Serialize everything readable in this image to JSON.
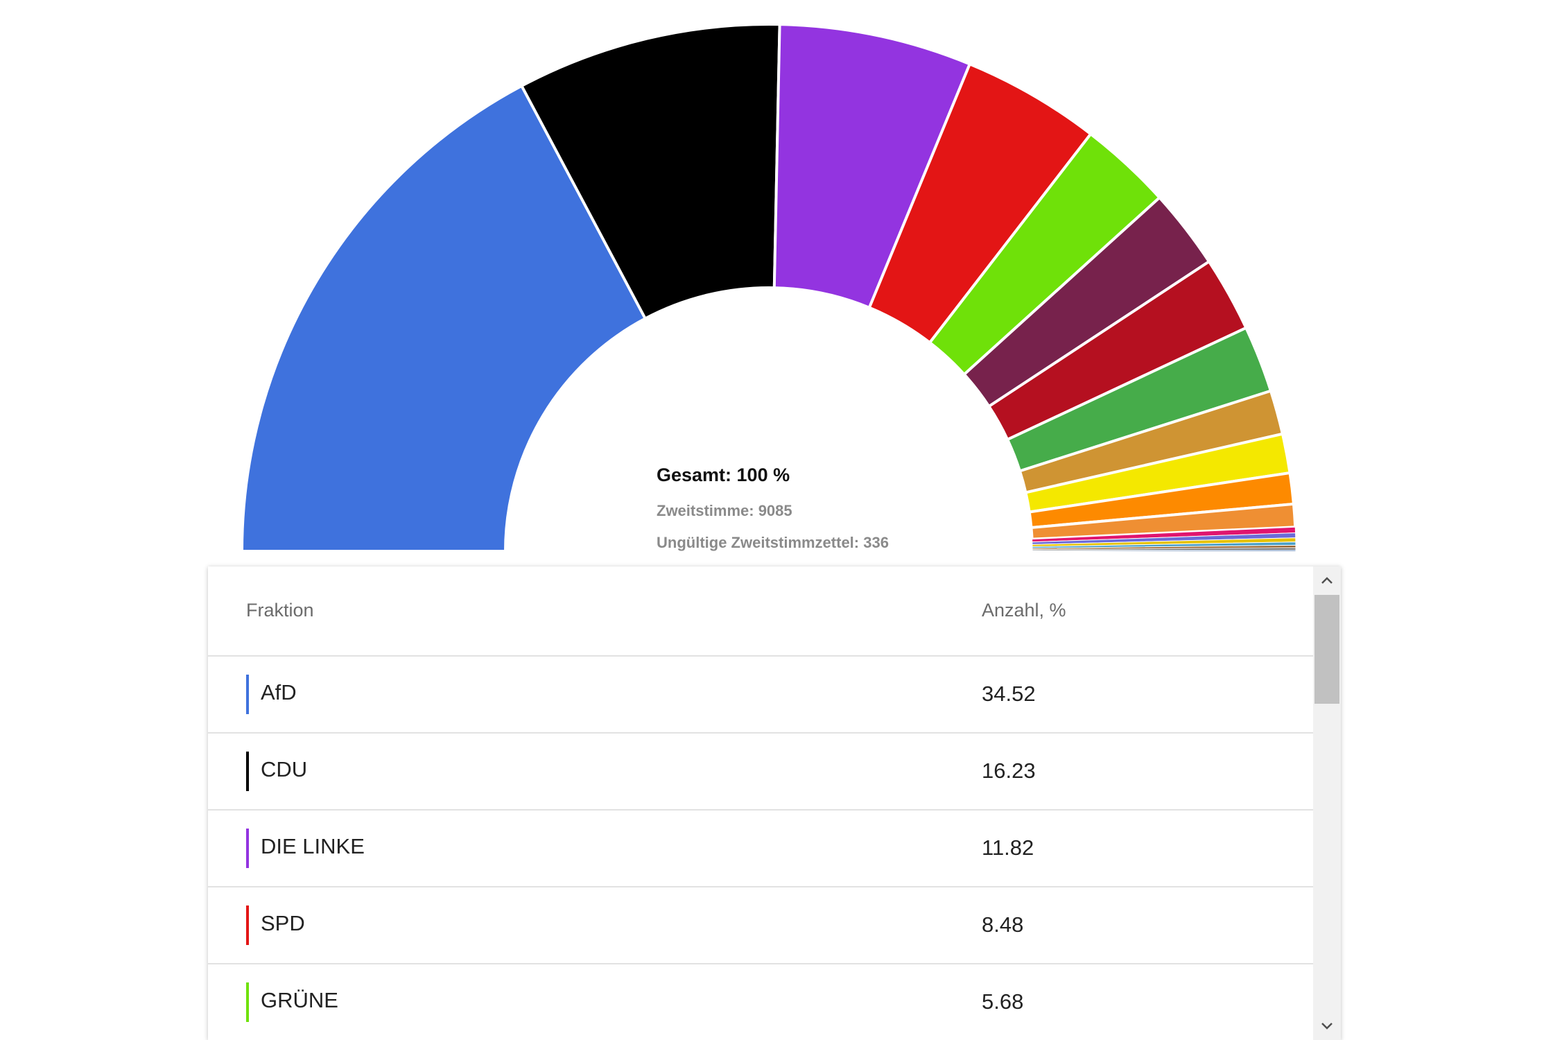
{
  "chart_data": {
    "type": "pie",
    "shape": "half-donut",
    "center": {
      "total_label": "Gesamt: 100 %",
      "votes_label": "Zweitstimme: 9085",
      "invalid_label": "Ungültige Zweitstimmzettel: 336"
    },
    "segments": [
      {
        "label": "AfD",
        "value": 34.52,
        "color": "#3f72dd"
      },
      {
        "label": "CDU",
        "value": 16.23,
        "color": "#000000"
      },
      {
        "label": "DIE LINKE",
        "value": 11.82,
        "color": "#9334e0"
      },
      {
        "label": "SPD",
        "value": 8.48,
        "color": "#e31515"
      },
      {
        "label": "GRÜNE",
        "value": 5.68,
        "color": "#6fe109"
      },
      {
        "label": "",
        "value": 4.9,
        "color": "#77224c"
      },
      {
        "label": "",
        "value": 4.6,
        "color": "#b51020"
      },
      {
        "label": "",
        "value": 4.1,
        "color": "#46ac4a"
      },
      {
        "label": "",
        "value": 2.7,
        "color": "#cf9433"
      },
      {
        "label": "",
        "value": 2.4,
        "color": "#f4e800"
      },
      {
        "label": "",
        "value": 1.9,
        "color": "#fd8a00"
      },
      {
        "label": "",
        "value": 1.4,
        "color": "#ef8f33"
      },
      {
        "label": "",
        "value": 0.35,
        "color": "#e0156f"
      },
      {
        "label": "",
        "value": 0.3,
        "color": "#6b6bd8"
      },
      {
        "label": "",
        "value": 0.25,
        "color": "#e6c200"
      },
      {
        "label": "",
        "value": 0.2,
        "color": "#4aa0c8"
      },
      {
        "label": "",
        "value": 0.16,
        "color": "#9a6a3a"
      },
      {
        "label": "",
        "value": 0.12,
        "color": "#555555"
      },
      {
        "label": "",
        "value": 0.08,
        "color": "#2a5a9a"
      }
    ]
  },
  "table": {
    "header_party": "Fraktion",
    "header_value": "Anzahl, %",
    "rows": [
      {
        "party": "AfD",
        "value": "34.52",
        "color": "#3f72dd"
      },
      {
        "party": "CDU",
        "value": "16.23",
        "color": "#000000"
      },
      {
        "party": "DIE LINKE",
        "value": "11.82",
        "color": "#9334e0"
      },
      {
        "party": "SPD",
        "value": "8.48",
        "color": "#e31515"
      },
      {
        "party": "GRÜNE",
        "value": "5.68",
        "color": "#6fe109"
      }
    ]
  },
  "scrollbar": {
    "up_icon": "chevron-up-icon",
    "down_icon": "chevron-down-icon"
  }
}
